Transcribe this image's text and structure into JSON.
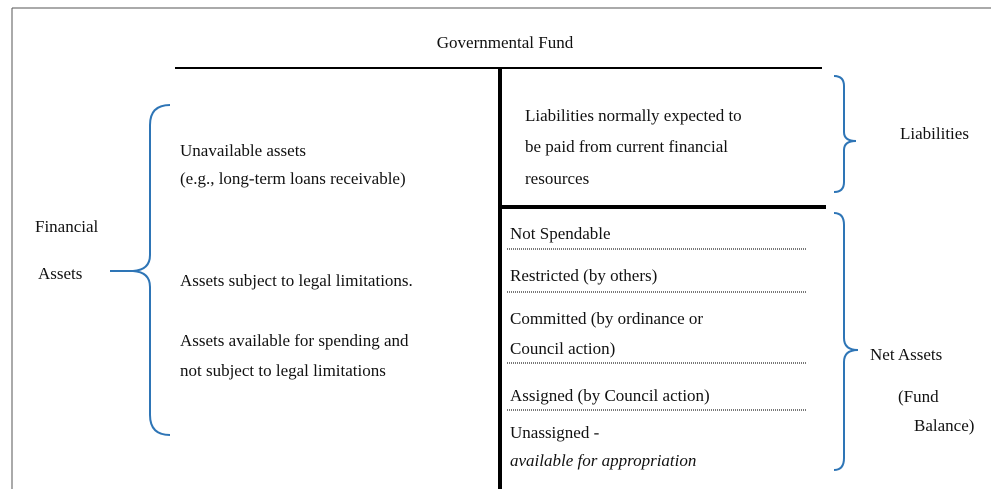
{
  "title": "Governmental Fund",
  "left_group": {
    "label_lines": [
      "Financial",
      "Assets"
    ]
  },
  "left_items": [
    {
      "lines": [
        "Unavailable assets",
        "(e.g., long-term loans receivable)"
      ]
    },
    {
      "lines": [
        "Assets subject to legal limitations."
      ]
    },
    {
      "lines": [
        "Assets available for spending and",
        "not subject to legal limitations"
      ]
    }
  ],
  "liabilities": {
    "lines": [
      "Liabilities normally expected to",
      "be paid from current financial",
      "resources"
    ],
    "label": "Liabilities"
  },
  "fund_balance": {
    "items": [
      {
        "lines": [
          "Not Spendable"
        ]
      },
      {
        "lines": [
          "Restricted (by others)"
        ]
      },
      {
        "lines": [
          "Committed (by ordinance or",
          "Council action)"
        ]
      },
      {
        "lines": [
          "Assigned (by Council action)"
        ]
      },
      {
        "lines": [
          "Unassigned -",
          "available for appropriation"
        ]
      }
    ],
    "label_lines": [
      "Net Assets",
      "(Fund",
      "Balance)"
    ]
  }
}
